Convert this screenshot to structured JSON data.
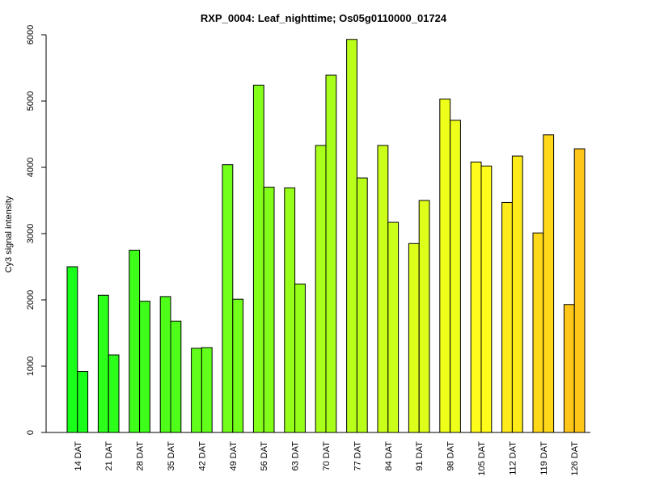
{
  "chart_data": {
    "type": "bar",
    "title": "RXP_0004: Leaf_nighttime; Os05g0110000_01724",
    "xlabel": "",
    "ylabel": "Cy3 signal intensity",
    "ylim": [
      0,
      6000
    ],
    "yticks": [
      0,
      1000,
      2000,
      3000,
      4000,
      5000,
      6000
    ],
    "grid": false,
    "legend": "none",
    "categories": [
      "14 DAT",
      "21 DAT",
      "28 DAT",
      "35 DAT",
      "42 DAT",
      "49 DAT",
      "56 DAT",
      "63 DAT",
      "70 DAT",
      "77 DAT",
      "84 DAT",
      "91 DAT",
      "98 DAT",
      "105 DAT",
      "112 DAT",
      "119 DAT",
      "126 DAT"
    ],
    "series": [
      {
        "values": [
          2500,
          2070,
          2750,
          2050,
          1270,
          4040,
          5240,
          3690,
          4330,
          5930,
          4330,
          2850,
          5030,
          4080,
          3470,
          3010,
          1930
        ]
      },
      {
        "values": [
          920,
          1170,
          1980,
          1680,
          1280,
          2010,
          3700,
          2240,
          5390,
          3840,
          3170,
          3500,
          4710,
          4020,
          4170,
          4490,
          4280
        ]
      }
    ],
    "colors": [
      "#1aff1a",
      "#2bff1a",
      "#3dff1a",
      "#4fff1a",
      "#61ff1a",
      "#72ff1a",
      "#84ff1a",
      "#96ff1a",
      "#a8ff1a",
      "#b9ff1a",
      "#cbff1a",
      "#ddff1a",
      "#eeff1a",
      "#fffb1a",
      "#ffea1a",
      "#ffd81a",
      "#ffc61a"
    ]
  }
}
